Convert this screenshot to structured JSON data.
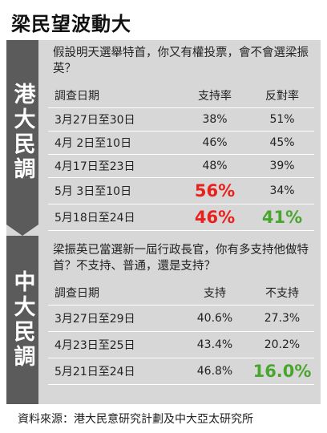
{
  "title": "梁民望波動大",
  "source": "資料來源：港大民意研究計劃及中大亞太研究所",
  "colors": {
    "sidebar": "#5b5b5b",
    "panel": "#d7d7d7",
    "red": "#e8211d",
    "green": "#4aa52e"
  },
  "chart_data": [
    {
      "type": "table",
      "group": "港大民調",
      "question": "假設明天選舉特首，你又有權投票，會不會選梁振英？",
      "columns": [
        "調查日期",
        "支持率",
        "反對率"
      ],
      "rows": [
        [
          "3月27日至30日",
          "38%",
          "51%"
        ],
        [
          "4月 2日至10日",
          "46%",
          "45%"
        ],
        [
          "4月17日至23日",
          "48%",
          "39%"
        ],
        [
          "5月 3日至10日",
          "56%",
          "34%"
        ],
        [
          "5月18日至24日",
          "46%",
          "41%"
        ]
      ]
    },
    {
      "type": "table",
      "group": "中大民調",
      "question": "梁振英已當選新一屆行政長官，你有多支持他做特首？不支持、普通，還是支持？",
      "columns": [
        "調查日期",
        "支持",
        "不支持"
      ],
      "rows": [
        [
          "3月27日至29日",
          "40.6%",
          "27.3%"
        ],
        [
          "4月23日至25日",
          "43.4%",
          "20.2%"
        ],
        [
          "5月21日至24日",
          "46.8%",
          "16.0%"
        ]
      ]
    }
  ]
}
